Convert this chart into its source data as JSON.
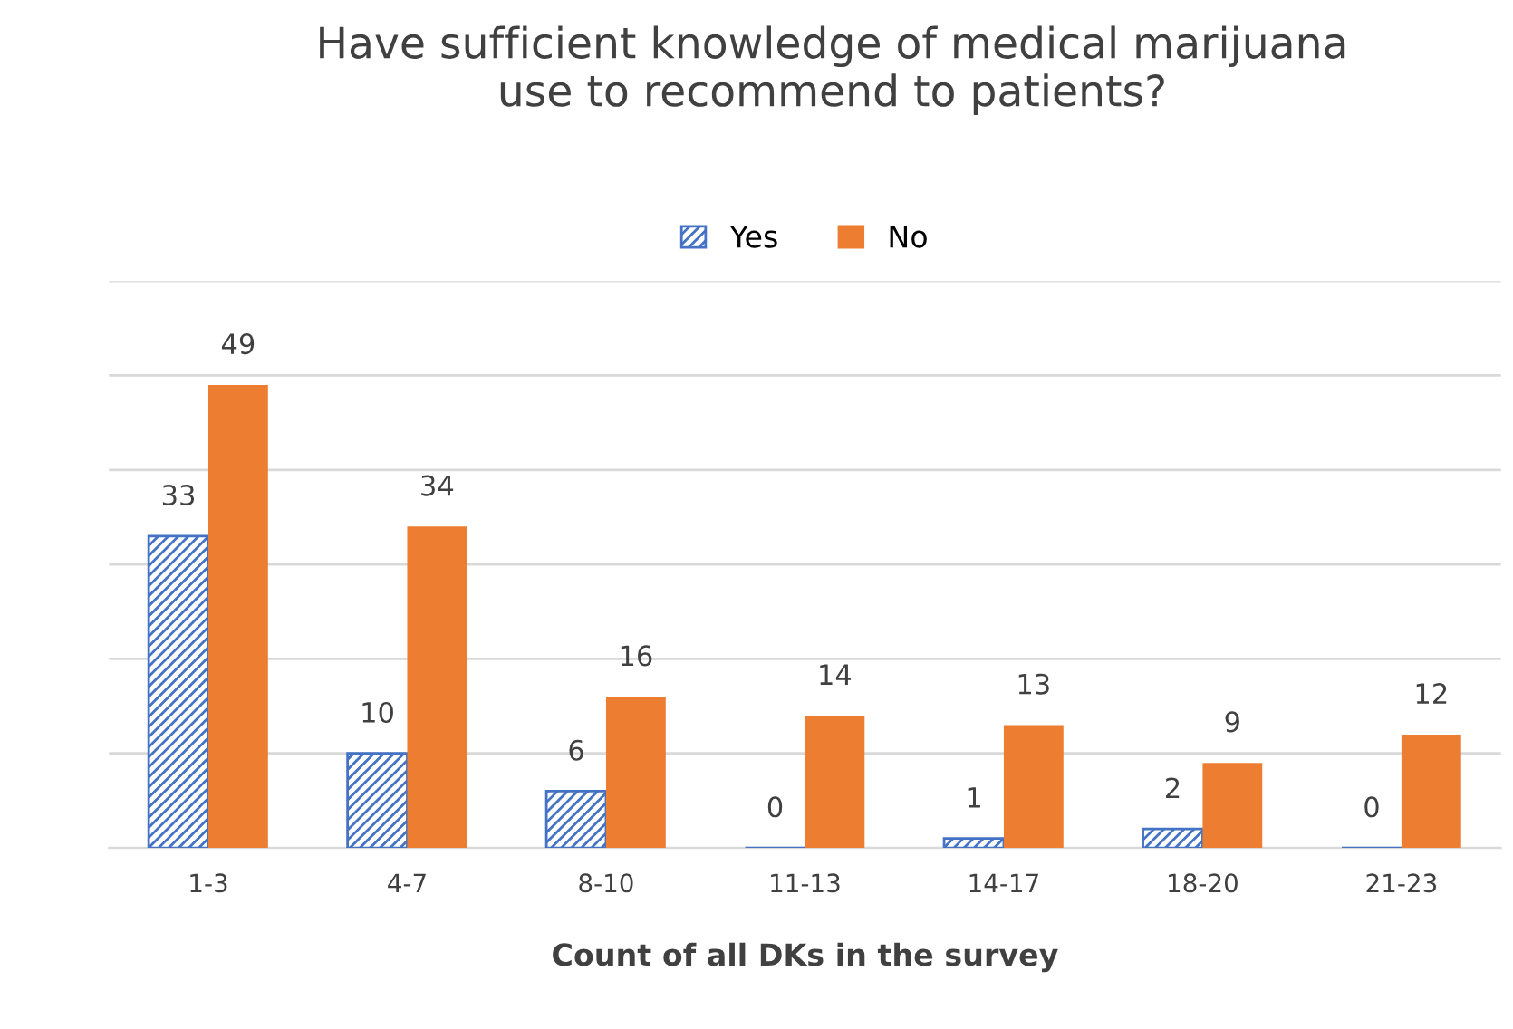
{
  "chart_data": {
    "type": "bar",
    "title": "Have sufficient knowledge of medical marijuana\nuse to recommend to patients?",
    "xlabel": "Count of all DKs in the survey",
    "categories": [
      "1-3",
      "4-7",
      "8-10",
      "11-13",
      "14-17",
      "18-20",
      "21-23"
    ],
    "series": [
      {
        "name": "Yes",
        "color": "#4472c4",
        "values": [
          33,
          10,
          6,
          0,
          1,
          2,
          0
        ]
      },
      {
        "name": "No",
        "color": "#ed7d31",
        "values": [
          49,
          34,
          16,
          14,
          13,
          9,
          12
        ]
      }
    ],
    "ylim": [
      0,
      60
    ],
    "yticks": [
      {
        "value": 0,
        "label": null
      },
      {
        "value": 10,
        "label": null
      },
      {
        "value": 20,
        "label": null
      },
      {
        "value": 30,
        "label": null
      },
      {
        "value": 40,
        "label": null
      },
      {
        "value": 50,
        "label": null
      },
      {
        "value": 60,
        "label": null
      }
    ],
    "grid": "y",
    "legend": "top",
    "data_labels": true
  }
}
